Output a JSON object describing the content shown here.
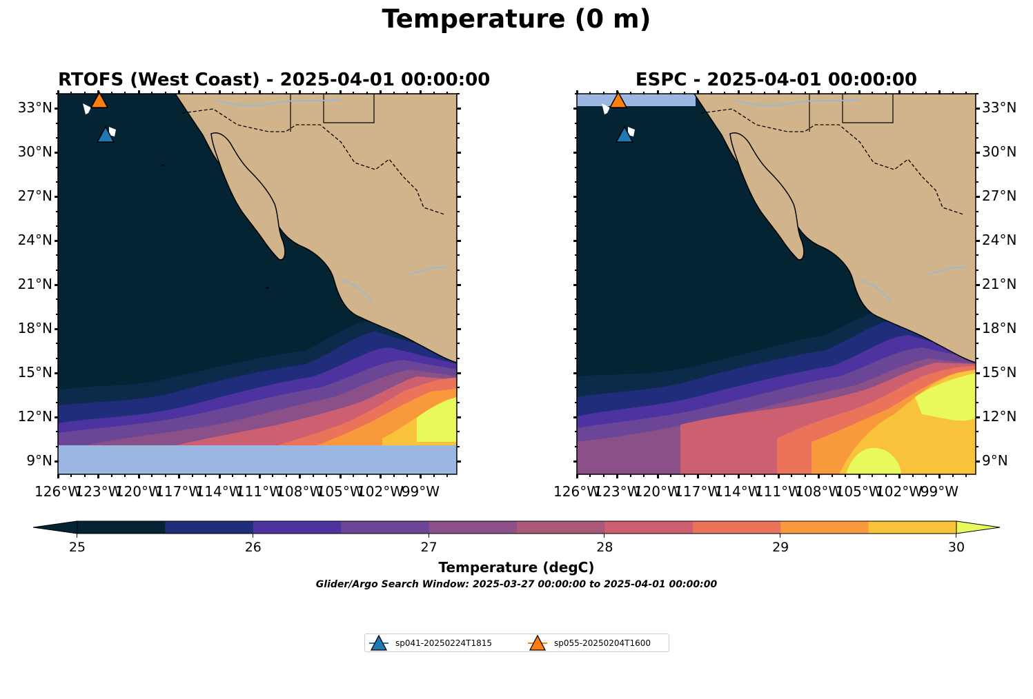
{
  "title": "Temperature (0 m)",
  "panels": [
    {
      "title": "RTOFS (West Coast) - 2025-04-01 00:00:00"
    },
    {
      "title": "ESPC - 2025-04-01 00:00:00"
    }
  ],
  "map_extent": {
    "lon": [
      -126,
      -96.3
    ],
    "lat": [
      8.1,
      34
    ]
  },
  "lat_ticks": [
    "33°N",
    "30°N",
    "27°N",
    "24°N",
    "21°N",
    "18°N",
    "15°N",
    "12°N",
    "9°N"
  ],
  "lon_ticks": [
    "126°W",
    "123°W",
    "120°W",
    "117°W",
    "114°W",
    "111°W",
    "108°W",
    "105°W",
    "102°W",
    "99°W"
  ],
  "colorbar": {
    "label": "Temperature (degC)",
    "ticks": [
      "25",
      "26",
      "27",
      "28",
      "29",
      "30"
    ],
    "range": [
      25,
      30
    ],
    "colors": [
      "#042333",
      "#1f2d7a",
      "#4c33a0",
      "#6b4596",
      "#8b5088",
      "#ac5878",
      "#cc6070",
      "#eb735a",
      "#f89a3c",
      "#f9c23b"
    ],
    "under_color": "#042333",
    "over_color": "#e8fa5b"
  },
  "colors": {
    "land": "#d2b48c",
    "nodata": "#9bb7e1",
    "rivers": "#9fb6cd"
  },
  "caption": "Glider/Argo Search Window: 2025-03-27 00:00:00 to 2025-04-01 00:00:00",
  "legend": [
    {
      "label": "sp041-20250224T1815",
      "color": "#1f77b4",
      "icon": "triangle-marker-icon"
    },
    {
      "label": "sp055-20250204T1600",
      "color": "#ff7f0e",
      "icon": "triangle-marker-icon"
    }
  ]
}
